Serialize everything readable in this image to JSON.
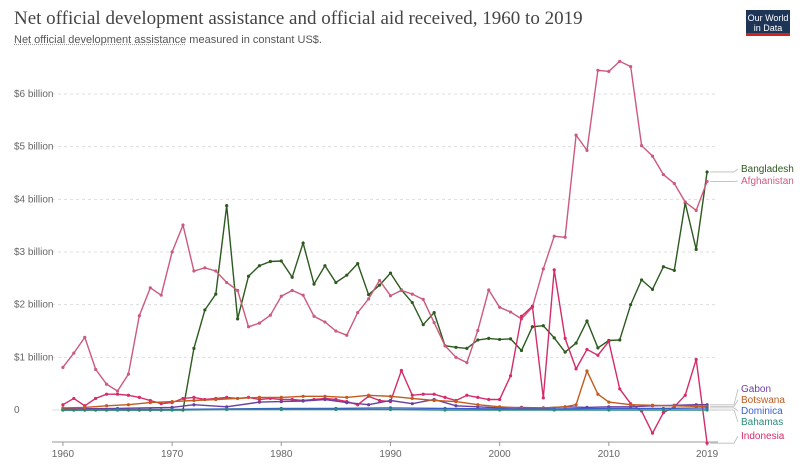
{
  "header": {
    "title": "Net official development assistance and official aid received, 1960 to 2019",
    "subtitle_link": "Net official development assistance",
    "subtitle_rest": " measured in constant US$.",
    "logo_line1": "Our World",
    "logo_line2": "in Data"
  },
  "chart_data": {
    "type": "line",
    "title": "Net official development assistance and official aid received, 1960 to 2019",
    "subtitle": "Net official development assistance measured in constant US$.",
    "xlabel": "",
    "ylabel": "",
    "xlim": [
      1959,
      2020
    ],
    "ylim": [
      -0.6,
      6.7
    ],
    "x_ticks": [
      1960,
      1970,
      1980,
      1990,
      2000,
      2010,
      2019
    ],
    "y_ticks": [
      {
        "value": 0,
        "label": "0"
      },
      {
        "value": 1,
        "label": "$1 billion"
      },
      {
        "value": 2,
        "label": "$2 billion"
      },
      {
        "value": 3,
        "label": "$3 billion"
      },
      {
        "value": 4,
        "label": "$4 billion"
      },
      {
        "value": 5,
        "label": "$5 billion"
      },
      {
        "value": 6,
        "label": "$6 billion"
      }
    ],
    "grid": "horizontal dashed",
    "legend_placement": "right",
    "series": [
      {
        "name": "Bangladesh",
        "color": "#2c5a1f",
        "x": [
          1960,
          1961,
          1962,
          1963,
          1964,
          1965,
          1966,
          1967,
          1968,
          1969,
          1970,
          1971,
          1972,
          1973,
          1974,
          1975,
          1976,
          1977,
          1978,
          1979,
          1980,
          1981,
          1982,
          1983,
          1984,
          1985,
          1986,
          1987,
          1988,
          1989,
          1990,
          1991,
          1992,
          1993,
          1994,
          1995,
          1996,
          1997,
          1998,
          1999,
          2000,
          2001,
          2002,
          2003,
          2004,
          2005,
          2006,
          2007,
          2008,
          2009,
          2010,
          2011,
          2012,
          2013,
          2014,
          2015,
          2016,
          2017,
          2018,
          2019
        ],
        "values": [
          0,
          0,
          0,
          0,
          0,
          0,
          0,
          0,
          0,
          0,
          0,
          0,
          1.17,
          1.9,
          2.2,
          3.88,
          1.73,
          2.54,
          2.74,
          2.82,
          2.83,
          2.52,
          3.17,
          2.39,
          2.74,
          2.42,
          2.56,
          2.78,
          2.19,
          2.37,
          2.6,
          2.28,
          2.04,
          1.62,
          1.85,
          1.22,
          1.19,
          1.17,
          1.33,
          1.36,
          1.34,
          1.35,
          1.13,
          1.58,
          1.6,
          1.37,
          1.1,
          1.27,
          1.69,
          1.18,
          1.32,
          1.33,
          2.0,
          2.47,
          2.29,
          2.72,
          2.65,
          3.93,
          3.05,
          4.52
        ]
      },
      {
        "name": "Afghanistan",
        "color": "#cc5a7d",
        "x": [
          1960,
          1961,
          1962,
          1963,
          1964,
          1965,
          1966,
          1967,
          1968,
          1969,
          1970,
          1971,
          1972,
          1973,
          1974,
          1975,
          1976,
          1977,
          1978,
          1979,
          1980,
          1981,
          1982,
          1983,
          1984,
          1985,
          1986,
          1987,
          1988,
          1989,
          1990,
          1991,
          1992,
          1993,
          1994,
          1995,
          1996,
          1997,
          1998,
          1999,
          2000,
          2001,
          2002,
          2003,
          2004,
          2005,
          2006,
          2007,
          2008,
          2009,
          2010,
          2011,
          2012,
          2013,
          2014,
          2015,
          2016,
          2017,
          2018,
          2019
        ],
        "values": [
          0.81,
          1.08,
          1.38,
          0.77,
          0.49,
          0.36,
          0.68,
          1.79,
          2.32,
          2.18,
          3.0,
          3.51,
          2.64,
          2.7,
          2.64,
          2.42,
          2.27,
          1.58,
          1.65,
          1.8,
          2.16,
          2.27,
          2.18,
          1.78,
          1.67,
          1.5,
          1.42,
          1.85,
          2.11,
          2.46,
          2.17,
          2.27,
          2.2,
          2.1,
          1.66,
          1.22,
          1.0,
          0.9,
          1.51,
          2.28,
          1.95,
          1.86,
          1.73,
          1.95,
          2.68,
          3.3,
          3.28,
          5.22,
          4.93,
          6.45,
          6.43,
          6.62,
          6.52,
          5.02,
          4.82,
          4.47,
          4.3,
          3.95,
          3.79,
          4.34
        ]
      },
      {
        "name": "Indonesia",
        "color": "#d42b6a",
        "x": [
          1960,
          1961,
          1962,
          1963,
          1964,
          1965,
          1966,
          1967,
          1968,
          1969,
          1970,
          1971,
          1972,
          1973,
          1974,
          1975,
          1976,
          1977,
          1978,
          1979,
          1980,
          1981,
          1982,
          1983,
          1984,
          1985,
          1986,
          1987,
          1988,
          1989,
          1990,
          1991,
          1992,
          1993,
          1994,
          1995,
          1996,
          1997,
          1998,
          1999,
          2000,
          2001,
          2002,
          2003,
          2004,
          2005,
          2006,
          2007,
          2008,
          2009,
          2010,
          2011,
          2012,
          2013,
          2014,
          2015,
          2016,
          2017,
          2018,
          2019
        ],
        "values": [
          0.1,
          0.22,
          0.08,
          0.22,
          0.3,
          0.3,
          0.28,
          0.24,
          0.18,
          0.12,
          0.14,
          0.22,
          0.24,
          0.2,
          0.22,
          0.24,
          0.22,
          0.24,
          0.2,
          0.22,
          0.2,
          0.2,
          0.18,
          0.2,
          0.22,
          0.2,
          0.16,
          0.1,
          0.26,
          0.18,
          0.16,
          0.75,
          0.28,
          0.3,
          0.3,
          0.24,
          0.18,
          0.28,
          0.24,
          0.2,
          0.2,
          0.65,
          1.78,
          1.97,
          0.23,
          2.66,
          1.36,
          0.78,
          1.15,
          1.04,
          1.3,
          0.4,
          0.12,
          -0.02,
          -0.44,
          -0.05,
          0.06,
          0.28,
          0.96,
          -0.63
        ]
      },
      {
        "name": "Gabon",
        "color": "#6b3fa0",
        "x": [
          1960,
          1965,
          1970,
          1972,
          1975,
          1978,
          1980,
          1982,
          1984,
          1986,
          1988,
          1990,
          1992,
          1994,
          1996,
          1998,
          2000,
          2002,
          2004,
          2006,
          2008,
          2010,
          2012,
          2014,
          2016,
          2018,
          2019
        ],
        "values": [
          0.02,
          0.03,
          0.05,
          0.1,
          0.06,
          0.15,
          0.16,
          0.17,
          0.2,
          0.14,
          0.1,
          0.18,
          0.12,
          0.2,
          0.08,
          0.06,
          0.04,
          0.05,
          0.04,
          0.06,
          0.05,
          0.06,
          0.06,
          0.08,
          0.09,
          0.1,
          0.1
        ]
      },
      {
        "name": "Botswana",
        "color": "#c15b1f",
        "x": [
          1960,
          1962,
          1964,
          1966,
          1968,
          1970,
          1972,
          1974,
          1976,
          1978,
          1980,
          1982,
          1984,
          1986,
          1988,
          1990,
          1992,
          1994,
          1996,
          1998,
          2000,
          2002,
          2004,
          2006,
          2007,
          2008,
          2009,
          2010,
          2012,
          2014,
          2016,
          2018,
          2019
        ],
        "values": [
          0.04,
          0.05,
          0.08,
          0.1,
          0.14,
          0.16,
          0.18,
          0.2,
          0.22,
          0.24,
          0.24,
          0.26,
          0.26,
          0.24,
          0.28,
          0.26,
          0.22,
          0.18,
          0.16,
          0.1,
          0.06,
          0.04,
          0.04,
          0.06,
          0.1,
          0.74,
          0.3,
          0.15,
          0.1,
          0.09,
          0.08,
          0.07,
          0.07
        ]
      },
      {
        "name": "Dominica",
        "color": "#3a5fcd",
        "x": [
          1960,
          1965,
          1970,
          1975,
          1980,
          1985,
          1990,
          1995,
          2000,
          2005,
          2010,
          2015,
          2019
        ],
        "values": [
          0,
          0.01,
          0.01,
          0.02,
          0.03,
          0.03,
          0.04,
          0.03,
          0.02,
          0.02,
          0.03,
          0.03,
          0.04
        ]
      },
      {
        "name": "Bahamas",
        "color": "#2a8c7a",
        "x": [
          1960,
          1965,
          1970,
          1975,
          1980,
          1985,
          1990,
          1995,
          2000,
          2005,
          2010,
          2015,
          2019
        ],
        "values": [
          0,
          0,
          0,
          0.01,
          0.01,
          0.01,
          0.01,
          0,
          0,
          0,
          0,
          0,
          0
        ]
      }
    ]
  }
}
